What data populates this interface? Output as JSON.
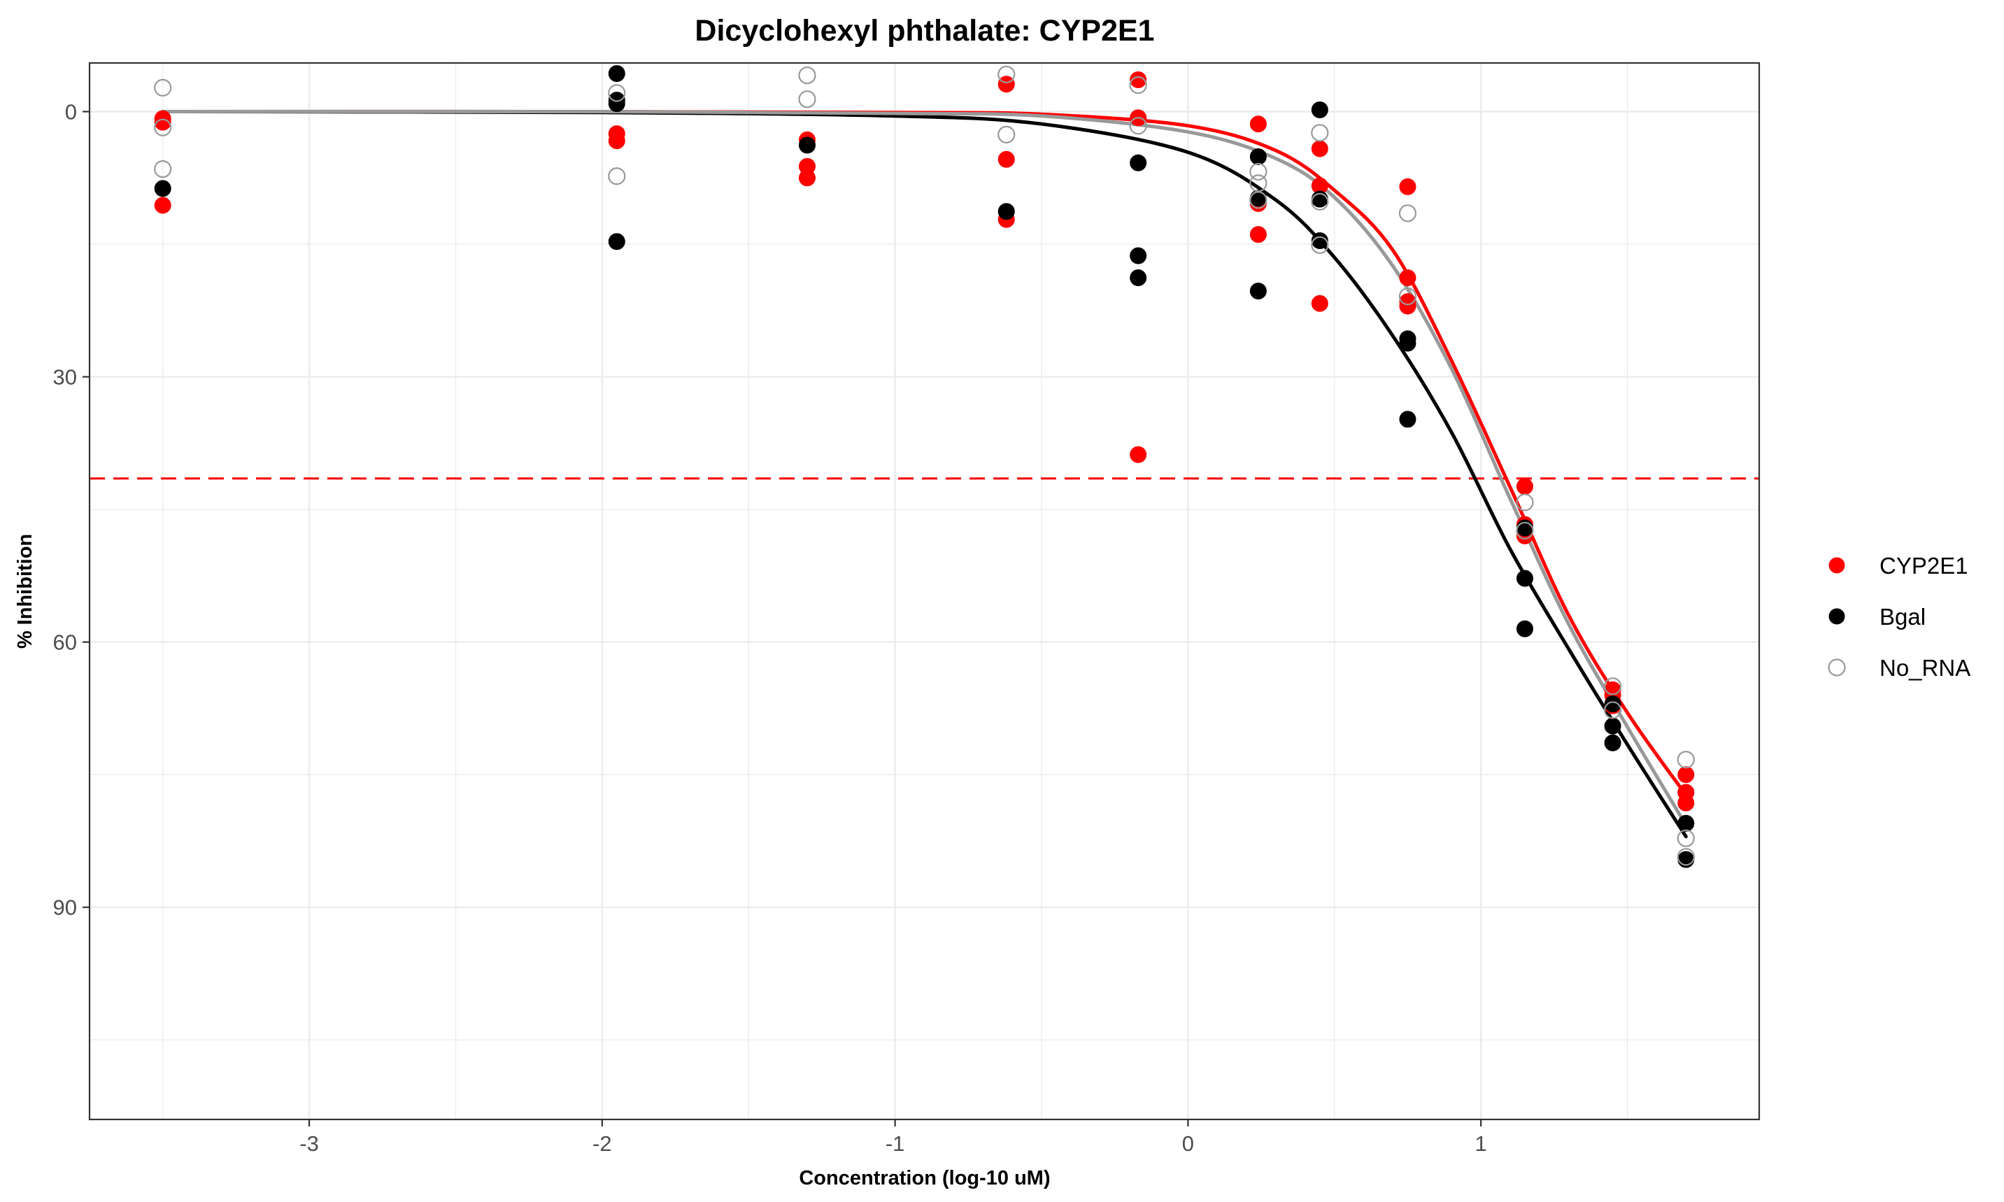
{
  "chart_data": {
    "type": "scatter",
    "title": "Dicyclohexyl phthalate: CYP2E1",
    "xlabel": "Concentration (log-10 uM)",
    "ylabel": "% Inhibition",
    "xlim": [
      -3.75,
      1.95
    ],
    "ylim": [
      -5.5,
      114
    ],
    "y_reversed": true,
    "x_ticks": [
      -3,
      -2,
      -1,
      0,
      1
    ],
    "x_tick_labels": [
      "-3",
      "-2",
      "-1",
      "0",
      "1"
    ],
    "y_ticks": [
      0,
      30,
      60,
      90
    ],
    "y_tick_labels": [
      "0",
      "30",
      "60",
      "90"
    ],
    "grid": true,
    "legend_position": "right",
    "reference_line": {
      "y": 41.5,
      "style": "dashed",
      "color": "#ff0000"
    },
    "series": [
      {
        "name": "CYP2E1",
        "color": "#ff0000",
        "marker": "filled-circle",
        "points": [
          [
            -3.5,
            0.8
          ],
          [
            -3.5,
            1.2
          ],
          [
            -3.5,
            10.6
          ],
          [
            -1.95,
            2.5
          ],
          [
            -1.95,
            3.3
          ],
          [
            -1.3,
            3.2
          ],
          [
            -1.3,
            6.2
          ],
          [
            -1.3,
            7.5
          ],
          [
            -0.62,
            -3.1
          ],
          [
            -0.62,
            5.4
          ],
          [
            -0.62,
            12.2
          ],
          [
            -0.17,
            -3.6
          ],
          [
            -0.17,
            0.7
          ],
          [
            -0.17,
            38.8
          ],
          [
            0.24,
            1.4
          ],
          [
            0.24,
            10.4
          ],
          [
            0.24,
            13.9
          ],
          [
            0.45,
            4.2
          ],
          [
            0.45,
            8.4
          ],
          [
            0.45,
            21.7
          ],
          [
            0.75,
            8.5
          ],
          [
            0.75,
            18.8
          ],
          [
            0.75,
            21.5
          ],
          [
            0.75,
            22.0
          ],
          [
            1.15,
            42.4
          ],
          [
            1.15,
            46.7
          ],
          [
            1.15,
            48.0
          ],
          [
            1.45,
            65.4
          ],
          [
            1.45,
            66.0
          ],
          [
            1.45,
            67.2
          ],
          [
            1.7,
            75.0
          ],
          [
            1.7,
            77.0
          ],
          [
            1.7,
            78.2
          ]
        ],
        "fit": [
          [
            -3.5,
            0.0
          ],
          [
            -2.0,
            0.0
          ],
          [
            -1.0,
            0.1
          ],
          [
            -0.5,
            0.3
          ],
          [
            0.0,
            1.6
          ],
          [
            0.3,
            4.4
          ],
          [
            0.5,
            8.9
          ],
          [
            0.7,
            15.7
          ],
          [
            0.9,
            28.2
          ],
          [
            1.1,
            42.5
          ],
          [
            1.3,
            57.0
          ],
          [
            1.5,
            68.0
          ],
          [
            1.7,
            77.3
          ]
        ]
      },
      {
        "name": "Bgal",
        "color": "#000000",
        "marker": "filled-circle",
        "points": [
          [
            -3.5,
            8.7
          ],
          [
            -1.95,
            -4.3
          ],
          [
            -1.95,
            -1.3
          ],
          [
            -1.95,
            -0.9
          ],
          [
            -1.95,
            14.7
          ],
          [
            -1.3,
            3.8
          ],
          [
            -0.62,
            11.3
          ],
          [
            -0.17,
            5.8
          ],
          [
            -0.17,
            16.3
          ],
          [
            -0.17,
            18.8
          ],
          [
            0.24,
            5.1
          ],
          [
            0.24,
            9.8
          ],
          [
            0.24,
            20.3
          ],
          [
            0.45,
            -0.2
          ],
          [
            0.45,
            9.9
          ],
          [
            0.45,
            14.6
          ],
          [
            0.75,
            25.7
          ],
          [
            0.75,
            26.2
          ],
          [
            0.75,
            34.8
          ],
          [
            1.15,
            47.1
          ],
          [
            1.15,
            52.8
          ],
          [
            1.15,
            58.5
          ],
          [
            1.45,
            67.0
          ],
          [
            1.45,
            69.5
          ],
          [
            1.45,
            71.4
          ],
          [
            1.7,
            80.5
          ],
          [
            1.7,
            84.6
          ]
        ],
        "fit": [
          [
            -3.5,
            0.0
          ],
          [
            -2.0,
            0.1
          ],
          [
            -1.0,
            0.5
          ],
          [
            -0.5,
            1.4
          ],
          [
            0.0,
            4.6
          ],
          [
            0.3,
            10.0
          ],
          [
            0.5,
            16.5
          ],
          [
            0.7,
            25.4
          ],
          [
            0.9,
            36.3
          ],
          [
            1.1,
            49.5
          ],
          [
            1.3,
            60.8
          ],
          [
            1.5,
            71.6
          ],
          [
            1.7,
            82.0
          ]
        ]
      },
      {
        "name": "No_RNA",
        "color": "#999999",
        "marker": "hollow-circle",
        "points": [
          [
            -3.5,
            -2.7
          ],
          [
            -3.5,
            1.8
          ],
          [
            -3.5,
            6.5
          ],
          [
            -1.95,
            -2.1
          ],
          [
            -1.95,
            7.3
          ],
          [
            -1.3,
            -1.4
          ],
          [
            -1.3,
            -4.1
          ],
          [
            -0.62,
            -4.2
          ],
          [
            -0.62,
            2.6
          ],
          [
            -0.17,
            -3.0
          ],
          [
            -0.17,
            1.6
          ],
          [
            0.24,
            6.8
          ],
          [
            0.24,
            8.1
          ],
          [
            0.24,
            10.0
          ],
          [
            0.45,
            2.4
          ],
          [
            0.45,
            10.2
          ],
          [
            0.45,
            15.1
          ],
          [
            0.75,
            11.5
          ],
          [
            0.75,
            20.9
          ],
          [
            1.15,
            44.2
          ],
          [
            1.15,
            47.4
          ],
          [
            1.45,
            65.0
          ],
          [
            1.45,
            67.7
          ],
          [
            1.7,
            73.3
          ],
          [
            1.7,
            82.2
          ],
          [
            1.7,
            84.3
          ]
        ],
        "fit": [
          [
            -3.5,
            0.0
          ],
          [
            -2.0,
            0.0
          ],
          [
            -1.0,
            0.2
          ],
          [
            -0.5,
            0.5
          ],
          [
            0.0,
            2.3
          ],
          [
            0.3,
            5.3
          ],
          [
            0.5,
            9.7
          ],
          [
            0.7,
            17.5
          ],
          [
            0.9,
            29.1
          ],
          [
            1.1,
            43.8
          ],
          [
            1.3,
            58.0
          ],
          [
            1.5,
            69.6
          ],
          [
            1.7,
            80.7
          ]
        ]
      }
    ]
  }
}
